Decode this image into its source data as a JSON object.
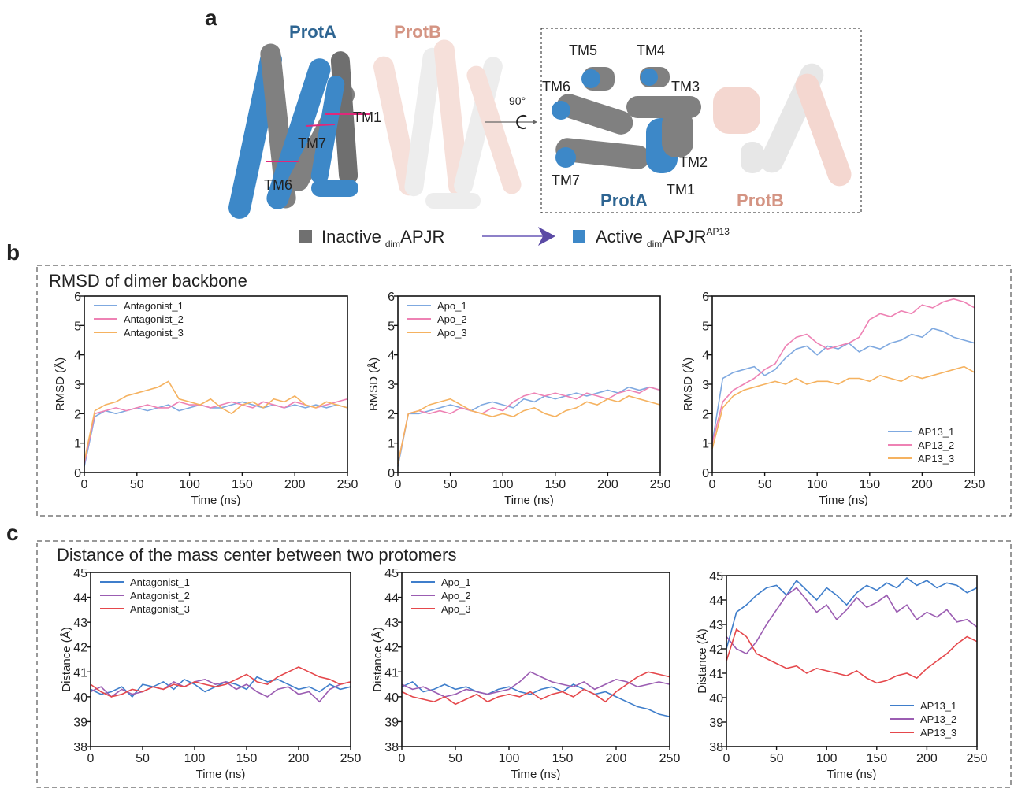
{
  "panel_a": {
    "label": "a",
    "protA": "ProtA",
    "protB": "ProtB",
    "left_tm": [
      "TM1",
      "TM7",
      "TM6"
    ],
    "rotation": "90°",
    "right_tm": [
      "TM5",
      "TM4",
      "TM6",
      "TM3",
      "TM2",
      "TM7",
      "TM1"
    ],
    "right_protA": "ProtA",
    "right_protB": "ProtB",
    "legend": [
      {
        "text": "Inactive",
        "sub": "dim",
        "main": "APJR"
      },
      {
        "text": "Active",
        "sub": "dim",
        "main": "APJR",
        "sup": "AP13"
      }
    ]
  },
  "panel_b": {
    "label": "b",
    "title": "RMSD of dimer backbone"
  },
  "panel_c": {
    "label": "c",
    "title": "Distance of the mass center between two protomers"
  },
  "chart_data": [
    {
      "type": "line",
      "xlabel": "Time (ns)",
      "ylabel": "RMSD (Å)",
      "xlim": [
        0,
        250
      ],
      "ylim": [
        0,
        6
      ],
      "xticks": [
        0,
        50,
        100,
        150,
        200,
        250
      ],
      "yticks": [
        0,
        1,
        2,
        3,
        4,
        5,
        6
      ],
      "legend": "upper left",
      "x": [
        0,
        10,
        20,
        30,
        40,
        50,
        60,
        70,
        80,
        90,
        100,
        110,
        120,
        130,
        140,
        150,
        160,
        170,
        180,
        190,
        200,
        210,
        220,
        230,
        240,
        250
      ],
      "series": [
        {
          "name": "Antagonist_1",
          "color": "#7fa9e0",
          "values": [
            0.2,
            1.9,
            2.1,
            2.0,
            2.1,
            2.2,
            2.1,
            2.2,
            2.3,
            2.1,
            2.2,
            2.3,
            2.2,
            2.2,
            2.3,
            2.4,
            2.3,
            2.2,
            2.3,
            2.2,
            2.3,
            2.2,
            2.3,
            2.2,
            2.3,
            2.2
          ]
        },
        {
          "name": "Antagonist_2",
          "color": "#ee82b4",
          "values": [
            0.3,
            2.0,
            2.1,
            2.2,
            2.1,
            2.2,
            2.3,
            2.2,
            2.2,
            2.4,
            2.3,
            2.3,
            2.2,
            2.3,
            2.4,
            2.3,
            2.2,
            2.4,
            2.3,
            2.2,
            2.4,
            2.3,
            2.2,
            2.3,
            2.4,
            2.5
          ]
        },
        {
          "name": "Antagonist_3",
          "color": "#f5b260",
          "values": [
            0.4,
            2.1,
            2.3,
            2.4,
            2.6,
            2.7,
            2.8,
            2.9,
            3.1,
            2.5,
            2.4,
            2.3,
            2.5,
            2.2,
            2.0,
            2.3,
            2.4,
            2.2,
            2.5,
            2.4,
            2.6,
            2.3,
            2.2,
            2.4,
            2.3,
            2.2
          ]
        }
      ]
    },
    {
      "type": "line",
      "xlabel": "Time (ns)",
      "ylabel": "RMSD (Å)",
      "xlim": [
        0,
        250
      ],
      "ylim": [
        0,
        6
      ],
      "xticks": [
        0,
        50,
        100,
        150,
        200,
        250
      ],
      "yticks": [
        0,
        1,
        2,
        3,
        4,
        5,
        6
      ],
      "legend": "upper left",
      "x": [
        0,
        10,
        20,
        30,
        40,
        50,
        60,
        70,
        80,
        90,
        100,
        110,
        120,
        130,
        140,
        150,
        160,
        170,
        180,
        190,
        200,
        210,
        220,
        230,
        240,
        250
      ],
      "series": [
        {
          "name": "Apo_1",
          "color": "#7fa9e0",
          "values": [
            0.2,
            2.0,
            2.0,
            2.1,
            2.2,
            2.3,
            2.2,
            2.1,
            2.3,
            2.4,
            2.3,
            2.2,
            2.5,
            2.4,
            2.6,
            2.5,
            2.6,
            2.7,
            2.6,
            2.7,
            2.8,
            2.7,
            2.9,
            2.8,
            2.9,
            2.8
          ]
        },
        {
          "name": "Apo_2",
          "color": "#ee82b4",
          "values": [
            0.3,
            2.0,
            2.1,
            2.0,
            2.1,
            2.0,
            2.2,
            2.1,
            2.0,
            2.2,
            2.1,
            2.4,
            2.6,
            2.7,
            2.6,
            2.7,
            2.6,
            2.5,
            2.7,
            2.6,
            2.5,
            2.7,
            2.8,
            2.7,
            2.9,
            2.8
          ]
        },
        {
          "name": "Apo_3",
          "color": "#f5b260",
          "values": [
            0.3,
            2.0,
            2.1,
            2.3,
            2.4,
            2.5,
            2.3,
            2.1,
            2.0,
            1.9,
            2.0,
            1.9,
            2.1,
            2.2,
            2.0,
            1.9,
            2.1,
            2.2,
            2.4,
            2.3,
            2.5,
            2.4,
            2.6,
            2.5,
            2.4,
            2.3
          ]
        }
      ]
    },
    {
      "type": "line",
      "xlabel": "Time (ns)",
      "ylabel": "RMSD (Å)",
      "xlim": [
        0,
        250
      ],
      "ylim": [
        0,
        6
      ],
      "xticks": [
        0,
        50,
        100,
        150,
        200,
        250
      ],
      "yticks": [
        0,
        1,
        2,
        3,
        4,
        5,
        6
      ],
      "legend": "lower right",
      "x": [
        0,
        10,
        20,
        30,
        40,
        50,
        60,
        70,
        80,
        90,
        100,
        110,
        120,
        130,
        140,
        150,
        160,
        170,
        180,
        190,
        200,
        210,
        220,
        230,
        240,
        250
      ],
      "series": [
        {
          "name": "AP13_1",
          "color": "#7fa9e0",
          "values": [
            1.0,
            3.2,
            3.4,
            3.5,
            3.6,
            3.3,
            3.5,
            3.9,
            4.2,
            4.3,
            4.0,
            4.3,
            4.2,
            4.4,
            4.1,
            4.3,
            4.2,
            4.4,
            4.5,
            4.7,
            4.6,
            4.9,
            4.8,
            4.6,
            4.5,
            4.4
          ]
        },
        {
          "name": "AP13_2",
          "color": "#ee82b4",
          "values": [
            1.0,
            2.4,
            2.8,
            3.0,
            3.2,
            3.5,
            3.7,
            4.3,
            4.6,
            4.7,
            4.4,
            4.2,
            4.3,
            4.4,
            4.6,
            5.2,
            5.4,
            5.3,
            5.5,
            5.4,
            5.7,
            5.6,
            5.8,
            5.9,
            5.8,
            5.6
          ]
        },
        {
          "name": "AP13_3",
          "color": "#f5b260",
          "values": [
            0.8,
            2.2,
            2.6,
            2.8,
            2.9,
            3.0,
            3.1,
            3.0,
            3.2,
            3.0,
            3.1,
            3.1,
            3.0,
            3.2,
            3.2,
            3.1,
            3.3,
            3.2,
            3.1,
            3.3,
            3.2,
            3.3,
            3.4,
            3.5,
            3.6,
            3.4
          ]
        }
      ]
    },
    {
      "type": "line",
      "xlabel": "Time (ns)",
      "ylabel": "Distance (Å)",
      "xlim": [
        0,
        250
      ],
      "ylim": [
        38,
        45
      ],
      "xticks": [
        0,
        50,
        100,
        150,
        200,
        250
      ],
      "yticks": [
        38,
        39,
        40,
        41,
        42,
        43,
        44,
        45
      ],
      "legend": "upper left",
      "x": [
        0,
        10,
        20,
        30,
        40,
        50,
        60,
        70,
        80,
        90,
        100,
        110,
        120,
        130,
        140,
        150,
        160,
        170,
        180,
        190,
        200,
        210,
        220,
        230,
        240,
        250
      ],
      "series": [
        {
          "name": "Antagonist_1",
          "color": "#3f7ecb",
          "values": [
            40.3,
            40.1,
            40.2,
            40.4,
            40.0,
            40.5,
            40.4,
            40.6,
            40.3,
            40.7,
            40.5,
            40.2,
            40.4,
            40.6,
            40.5,
            40.3,
            40.8,
            40.6,
            40.7,
            40.5,
            40.3,
            40.4,
            40.2,
            40.5,
            40.3,
            40.4
          ]
        },
        {
          "name": "Antagonist_2",
          "color": "#9b5db2",
          "values": [
            40.2,
            40.4,
            40.0,
            40.3,
            40.1,
            40.2,
            40.4,
            40.3,
            40.6,
            40.4,
            40.6,
            40.7,
            40.5,
            40.6,
            40.3,
            40.5,
            40.2,
            40.0,
            40.3,
            40.4,
            40.1,
            40.2,
            39.8,
            40.3,
            40.5,
            40.6
          ]
        },
        {
          "name": "Antagonist_3",
          "color": "#e5484c",
          "values": [
            40.5,
            40.2,
            40.0,
            40.1,
            40.3,
            40.2,
            40.4,
            40.3,
            40.5,
            40.4,
            40.6,
            40.5,
            40.4,
            40.5,
            40.7,
            40.9,
            40.6,
            40.5,
            40.8,
            41.0,
            41.2,
            41.0,
            40.8,
            40.7,
            40.5,
            40.6
          ]
        }
      ]
    },
    {
      "type": "line",
      "xlabel": "Time (ns)",
      "ylabel": "Distance (Å)",
      "xlim": [
        0,
        250
      ],
      "ylim": [
        38,
        45
      ],
      "xticks": [
        0,
        50,
        100,
        150,
        200,
        250
      ],
      "yticks": [
        38,
        39,
        40,
        41,
        42,
        43,
        44,
        45
      ],
      "legend": "upper left",
      "x": [
        0,
        10,
        20,
        30,
        40,
        50,
        60,
        70,
        80,
        90,
        100,
        110,
        120,
        130,
        140,
        150,
        160,
        170,
        180,
        190,
        200,
        210,
        220,
        230,
        240,
        250
      ],
      "series": [
        {
          "name": "Apo_1",
          "color": "#3f7ecb",
          "values": [
            40.4,
            40.6,
            40.2,
            40.3,
            40.5,
            40.3,
            40.4,
            40.2,
            40.1,
            40.3,
            40.4,
            40.2,
            40.1,
            40.3,
            40.4,
            40.2,
            40.5,
            40.3,
            40.1,
            40.2,
            40.0,
            39.8,
            39.6,
            39.5,
            39.3,
            39.2
          ]
        },
        {
          "name": "Apo_2",
          "color": "#9b5db2",
          "values": [
            40.5,
            40.3,
            40.4,
            40.2,
            40.0,
            40.1,
            40.3,
            40.2,
            40.1,
            40.2,
            40.3,
            40.6,
            41.0,
            40.8,
            40.6,
            40.5,
            40.4,
            40.6,
            40.3,
            40.5,
            40.7,
            40.6,
            40.4,
            40.5,
            40.6,
            40.5
          ]
        },
        {
          "name": "Apo_3",
          "color": "#e5484c",
          "values": [
            40.2,
            40.0,
            39.9,
            39.8,
            40.0,
            39.7,
            39.9,
            40.1,
            39.8,
            40.0,
            40.1,
            40.0,
            40.2,
            39.9,
            40.1,
            40.2,
            40.0,
            40.3,
            40.1,
            39.8,
            40.2,
            40.5,
            40.8,
            41.0,
            40.9,
            40.8
          ]
        }
      ]
    },
    {
      "type": "line",
      "xlabel": "Time (ns)",
      "ylabel": "Distance (Å)",
      "xlim": [
        0,
        250
      ],
      "ylim": [
        38,
        45
      ],
      "xticks": [
        0,
        50,
        100,
        150,
        200,
        250
      ],
      "yticks": [
        38,
        39,
        40,
        41,
        42,
        43,
        44,
        45
      ],
      "legend": "lower right",
      "x": [
        0,
        10,
        20,
        30,
        40,
        50,
        60,
        70,
        80,
        90,
        100,
        110,
        120,
        130,
        140,
        150,
        160,
        170,
        180,
        190,
        200,
        210,
        220,
        230,
        240,
        250
      ],
      "series": [
        {
          "name": "AP13_1",
          "color": "#3f7ecb",
          "values": [
            42.0,
            43.5,
            43.8,
            44.2,
            44.5,
            44.6,
            44.2,
            44.8,
            44.4,
            44.0,
            44.5,
            44.2,
            43.8,
            44.3,
            44.6,
            44.4,
            44.7,
            44.5,
            44.9,
            44.6,
            44.8,
            44.5,
            44.7,
            44.6,
            44.3,
            44.5
          ]
        },
        {
          "name": "AP13_2",
          "color": "#9b5db2",
          "values": [
            42.5,
            42.0,
            41.8,
            42.3,
            43.0,
            43.6,
            44.2,
            44.5,
            44.0,
            43.5,
            43.8,
            43.2,
            43.6,
            44.1,
            43.7,
            43.9,
            44.2,
            43.5,
            43.8,
            43.2,
            43.5,
            43.3,
            43.6,
            43.1,
            43.2,
            42.9
          ]
        },
        {
          "name": "AP13_3",
          "color": "#e5484c",
          "values": [
            41.5,
            42.8,
            42.5,
            41.8,
            41.6,
            41.4,
            41.2,
            41.3,
            41.0,
            41.2,
            41.1,
            41.0,
            40.9,
            41.1,
            40.8,
            40.6,
            40.7,
            40.9,
            41.0,
            40.8,
            41.2,
            41.5,
            41.8,
            42.2,
            42.5,
            42.3
          ]
        }
      ]
    }
  ]
}
